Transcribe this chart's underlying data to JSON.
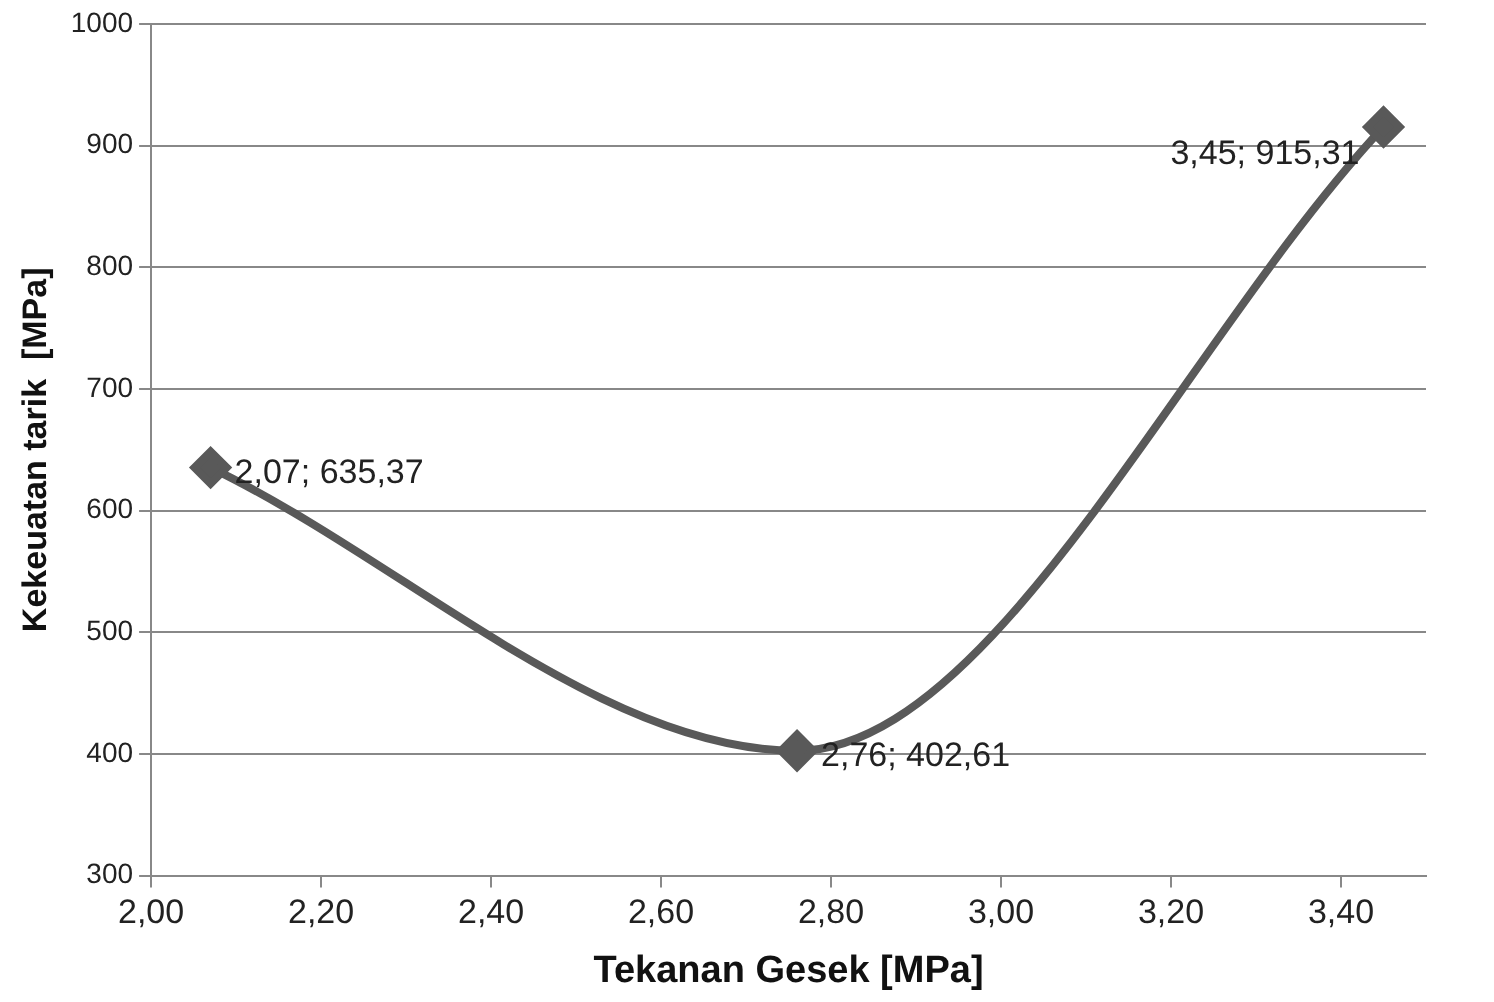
{
  "chart_data": {
    "type": "line",
    "xlabel": "Tekanan Gesek [MPa]",
    "ylabel": "Kekeuatan tarik  [MPa]",
    "x": [
      2.07,
      2.76,
      3.45
    ],
    "series": [
      {
        "color": "#595959",
        "values": [
          635.37,
          402.61,
          915.31
        ],
        "value_labels": [
          "2,07; 635,37",
          "2,76; 402,61",
          "3,45; 915,31"
        ]
      }
    ],
    "xlim": [
      2,
      3.5
    ],
    "xticks": [
      {
        "value": 2,
        "label": "2,00"
      },
      {
        "value": 2.2,
        "label": "2,20"
      },
      {
        "value": 2.4,
        "label": "2,40"
      },
      {
        "value": 2.6,
        "label": "2,60"
      },
      {
        "value": 2.8,
        "label": "2,80"
      },
      {
        "value": 3,
        "label": "3,00"
      },
      {
        "value": 3.2,
        "label": "3,20"
      },
      {
        "value": 3.4,
        "label": "3,40"
      }
    ],
    "ylim": [
      300,
      1000
    ],
    "yticks": [
      300,
      400,
      500,
      600,
      700,
      800,
      900,
      1000
    ],
    "grid": "y",
    "marker": "diamond",
    "line_style": "solid",
    "legend": false
  }
}
